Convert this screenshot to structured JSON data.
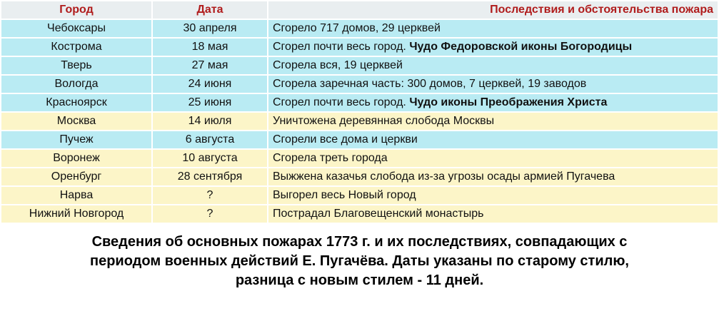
{
  "table": {
    "header": [
      "Город",
      "Дата",
      "Последствия и обстоятельства пожара"
    ],
    "header_color": "#e9eef0",
    "rows": [
      {
        "city": "Чебоксары",
        "date": "30 апреля",
        "text": "Сгорело 717 домов, 29 церквей",
        "color": "#b9ebf3"
      },
      {
        "city": "Кострома",
        "date": "18 мая",
        "text": "Сгорел почти весь город.",
        "bold": "Чудо Федоровской иконы Богородицы",
        "color": "#b9ebf3"
      },
      {
        "city": "Тверь",
        "date": "27 мая",
        "text": "Сгорела вся, 19 церквей",
        "color": "#b9ebf3"
      },
      {
        "city": "Вологда",
        "date": "24 июня",
        "text": "Сгорела заречная часть: 300 домов, 7 церквей, 19 заводов",
        "color": "#b9ebf3"
      },
      {
        "city": "Красноярск",
        "date": "25 июня",
        "text": "Сгорел почти весь город.",
        "bold": "Чудо иконы Преображения Христа",
        "color": "#b9ebf3"
      },
      {
        "city": "Москва",
        "date": "14 июля",
        "text": "Уничтожена деревянная слобода Москвы",
        "color": "#fcf5c8"
      },
      {
        "city": "Пучеж",
        "date": "6 августа",
        "text": "Сгорели все дома и церкви",
        "color": "#b9ebf3"
      },
      {
        "city": "Воронеж",
        "date": "10 августа",
        "text": "Сгорела треть города",
        "color": "#fcf5c8"
      },
      {
        "city": "Оренбург",
        "date": "28 сентября",
        "text": "Выжжена казачья слобода из-за угрозы осады армией Пугачева",
        "color": "#fcf5c8"
      },
      {
        "city": "Нарва",
        "date": "?",
        "text": "Выгорел весь Новый город",
        "color": "#fcf5c8"
      },
      {
        "city": "Нижний Новгород",
        "date": "?",
        "text": "Пострадал Благовещенский монастырь",
        "color": "#fcf5c8"
      }
    ]
  },
  "caption": [
    "Сведения об основных пожарах 1773 г. и их последствиях, совпадающих с",
    "периодом военных действий Е. Пугачёва. Даты указаны по старому стилю,",
    "разница с новым стилем - 11 дней."
  ]
}
